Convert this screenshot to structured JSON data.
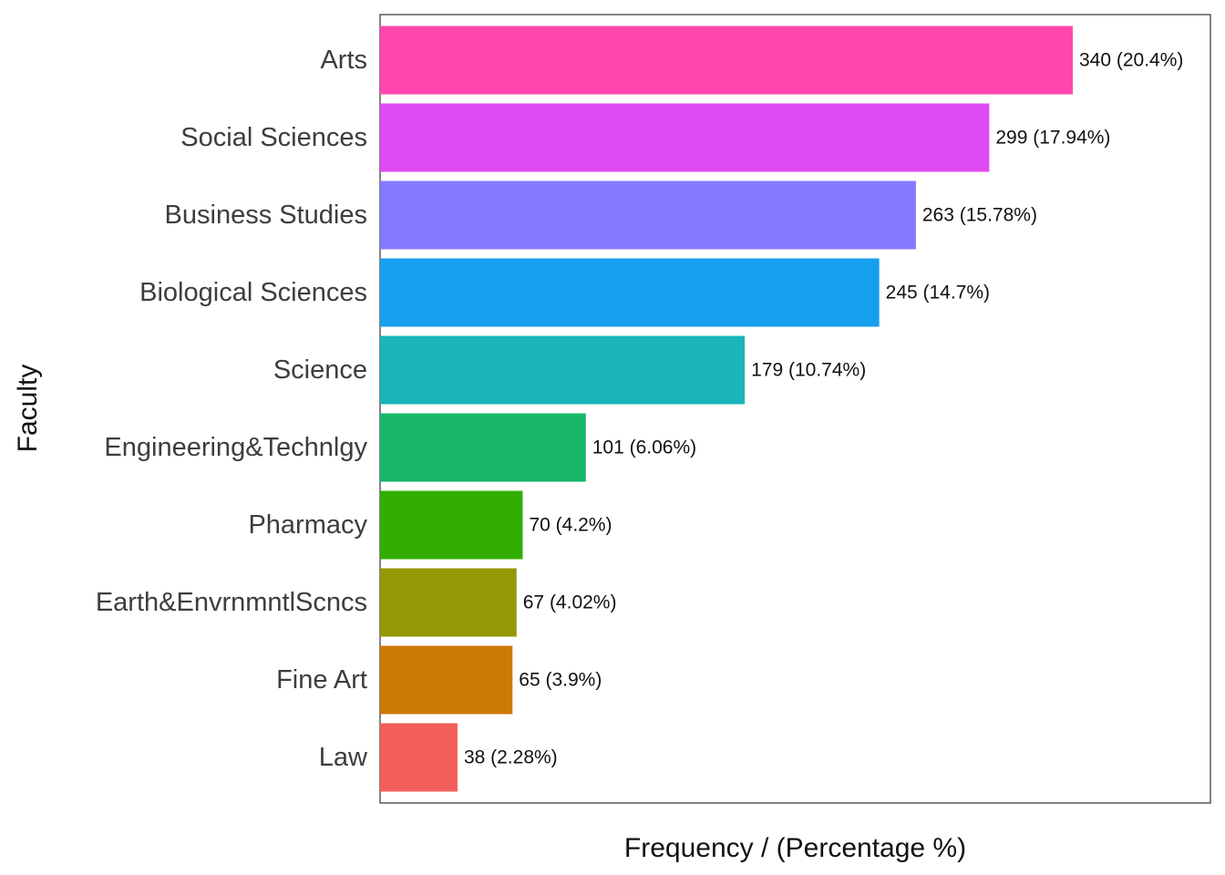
{
  "chart_data": {
    "type": "bar",
    "orientation": "horizontal",
    "xlabel": "Frequency / (Percentage %)",
    "ylabel": "Faculty",
    "grid": false,
    "legend": "none",
    "categories": [
      "Law",
      "Fine Art",
      "Earth&EnvrnmntlScncs",
      "Pharmacy",
      "Engineering&Technlgy",
      "Science",
      "Biological Sciences",
      "Business Studies",
      "Social Sciences",
      "Arts"
    ],
    "values": [
      38,
      65,
      67,
      70,
      101,
      179,
      245,
      263,
      299,
      340
    ],
    "labels": [
      "38 (2.28%)",
      "65 (3.9%)",
      "67 (4.02%)",
      "70 (4.2%)",
      "101 (6.06%)",
      "179 (10.74%)",
      "245 (14.7%)",
      "263 (15.78%)",
      "299 (17.94%)",
      "340 (20.4%)"
    ],
    "colors": [
      "#F35E5A",
      "#CD7A05",
      "#959804",
      "#32AE02",
      "#19B66A",
      "#19B5B8",
      "#179FEF",
      "#8579FF",
      "#DF4AF2",
      "#FF46AF"
    ],
    "xlim": [
      0,
      400
    ]
  }
}
